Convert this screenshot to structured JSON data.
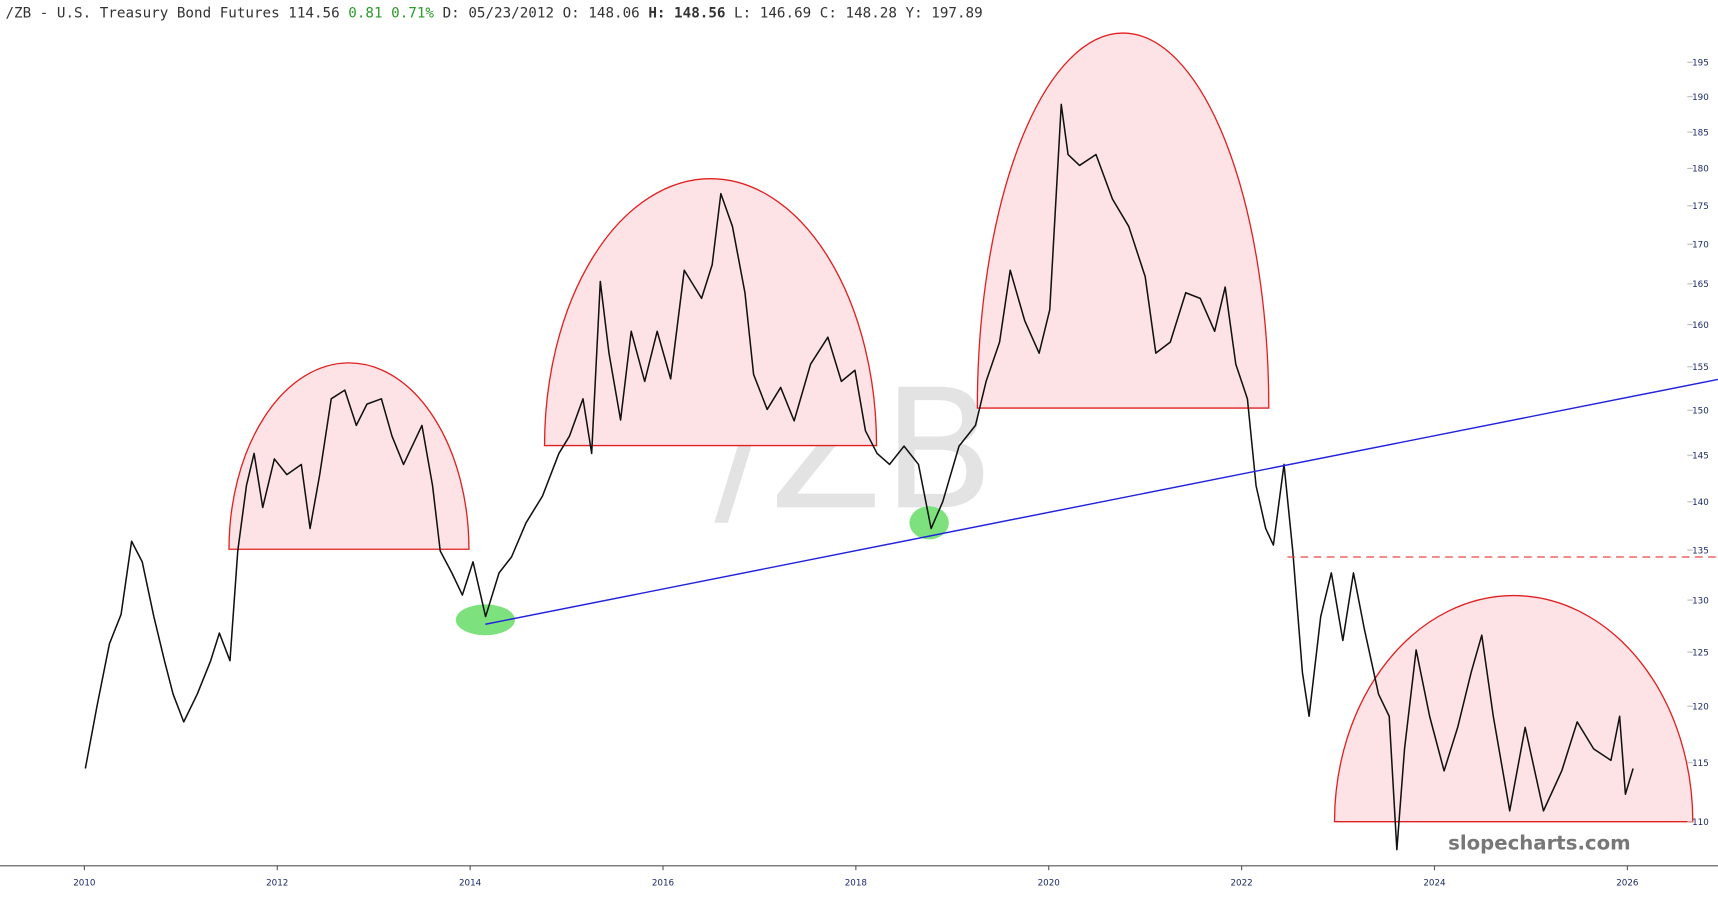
{
  "header": {
    "symbol": "/ZB - U.S. Treasury Bond Futures",
    "last": "114.56",
    "change": "0.81",
    "change_pct": "0.71%",
    "fields": [
      {
        "label": "D:",
        "value": "05/23/2012"
      },
      {
        "label": "O:",
        "value": "148.06"
      },
      {
        "label": "H:",
        "value": "148.56"
      },
      {
        "label": "L:",
        "value": "146.69"
      },
      {
        "label": "C:",
        "value": "148.28"
      },
      {
        "label": "Y:",
        "value": "197.89"
      }
    ]
  },
  "chart_data": {
    "type": "line",
    "watermark": "/ZB",
    "brand": "slopecharts.com",
    "log_scale": true,
    "xlim": [
      2009.125,
      2026.94
    ],
    "xticks": [
      2010,
      2012,
      2014,
      2016,
      2018,
      2020,
      2022,
      2024,
      2026
    ],
    "ylim": [
      106.4,
      201
    ],
    "yticks": [
      110,
      115,
      120,
      125,
      130,
      135,
      140,
      145,
      150,
      155,
      160,
      165,
      170,
      175,
      180,
      185,
      190,
      195
    ],
    "x": [
      2010.01,
      2010.13,
      2010.26,
      2010.38,
      2010.49,
      2010.6,
      2010.72,
      2010.83,
      2010.92,
      2011.03,
      2011.17,
      2011.31,
      2011.4,
      2011.51,
      2011.59,
      2011.68,
      2011.76,
      2011.85,
      2011.97,
      2012.1,
      2012.25,
      2012.34,
      2012.44,
      2012.56,
      2012.7,
      2012.82,
      2012.93,
      2013.08,
      2013.19,
      2013.31,
      2013.5,
      2013.61,
      2013.69,
      2013.81,
      2013.92,
      2014.03,
      2014.16,
      2014.3,
      2014.43,
      2014.58,
      2014.75,
      2014.92,
      2015.03,
      2015.17,
      2015.26,
      2015.35,
      2015.44,
      2015.56,
      2015.67,
      2015.81,
      2015.94,
      2016.08,
      2016.22,
      2016.4,
      2016.51,
      2016.6,
      2016.72,
      2016.85,
      2016.94,
      2017.08,
      2017.22,
      2017.36,
      2017.53,
      2017.71,
      2017.85,
      2017.99,
      2018.1,
      2018.22,
      2018.35,
      2018.5,
      2018.65,
      2018.78,
      2018.9,
      2019.07,
      2019.24,
      2019.35,
      2019.49,
      2019.6,
      2019.75,
      2019.9,
      2020.01,
      2020.13,
      2020.2,
      2020.32,
      2020.49,
      2020.66,
      2020.83,
      2021.0,
      2021.11,
      2021.26,
      2021.42,
      2021.57,
      2021.72,
      2021.83,
      2021.94,
      2022.06,
      2022.15,
      2022.25,
      2022.33,
      2022.44,
      2022.53,
      2022.63,
      2022.7,
      2022.82,
      2022.93,
      2023.05,
      2023.16,
      2023.27,
      2023.42,
      2023.53,
      2023.61,
      2023.69,
      2023.81,
      2023.95,
      2024.1,
      2024.24,
      2024.38,
      2024.49,
      2024.61,
      2024.78,
      2024.94,
      2025.13,
      2025.32,
      2025.48,
      2025.65,
      2025.83,
      2025.92,
      2025.98,
      2026.06
    ],
    "series": [
      {
        "color": "#111111",
        "values": [
          114.5,
          120,
          125.8,
          128.6,
          135.9,
          133.8,
          128.4,
          124.2,
          121.1,
          118.6,
          121.1,
          124.2,
          126.8,
          124.2,
          134.9,
          141.7,
          145.2,
          139.4,
          144.6,
          142.9,
          144,
          137.2,
          142.9,
          151.3,
          152.3,
          148.3,
          150.7,
          151.3,
          147.1,
          144,
          148.3,
          141.7,
          134.9,
          132.7,
          130.5,
          133.8,
          128.4,
          132.7,
          134.3,
          137.8,
          140.6,
          145.2,
          147.1,
          151.3,
          145.2,
          165.3,
          156.6,
          148.9,
          159.2,
          153.3,
          159.2,
          153.6,
          166.7,
          163.2,
          167.4,
          176.6,
          172.3,
          163.9,
          154.1,
          150.1,
          152.6,
          148.8,
          155.3,
          158.5,
          153.3,
          154.6,
          147.7,
          145.2,
          144,
          146,
          144,
          137.2,
          140,
          146,
          148.3,
          153.3,
          157.9,
          166.7,
          160.5,
          156.6,
          161.8,
          188.9,
          181.9,
          180.4,
          181.9,
          175.9,
          172.3,
          165.9,
          156.6,
          157.9,
          163.9,
          163.2,
          159.2,
          164.6,
          155.3,
          151.3,
          141.7,
          137.2,
          135.5,
          144,
          134.9,
          123.1,
          119.1,
          128.4,
          132.7,
          126.1,
          132.7,
          127.3,
          121.1,
          119.1,
          107.7,
          116.2,
          125.2,
          119.1,
          114.3,
          118.1,
          123.1,
          126.6,
          119.1,
          110.9,
          118.1,
          110.9,
          114.3,
          118.6,
          116.2,
          115.2,
          119.1,
          112.3,
          114.5
        ]
      }
    ]
  }
}
